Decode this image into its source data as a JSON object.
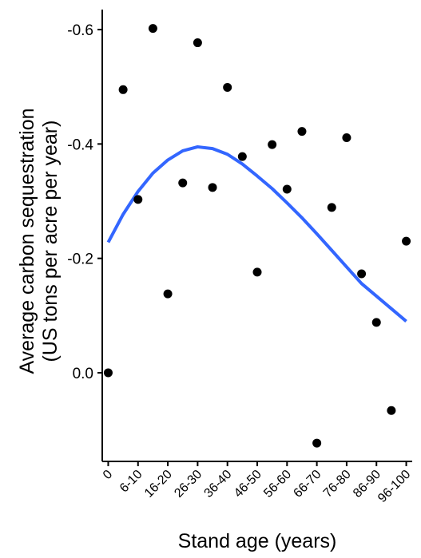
{
  "chart_data": {
    "type": "scatter",
    "title": "",
    "xlabel": "Stand age (years)",
    "ylabel": "Average carbon sequestration",
    "ylabel_line2": "(US tons per acre per year)",
    "x_tick_labels": [
      "0",
      "6-10",
      "16-20",
      "26-30",
      "36-40",
      "46-50",
      "56-60",
      "66-70",
      "76-80",
      "86-90",
      "96-100"
    ],
    "x_tick_values": [
      0,
      10,
      20,
      30,
      40,
      50,
      60,
      70,
      80,
      90,
      100
    ],
    "y_tick_labels": [
      "-0.6",
      "-0.4",
      "-0.2",
      "0.0"
    ],
    "y_tick_values": [
      -0.6,
      -0.4,
      -0.2,
      0.0
    ],
    "y_axis_reversed": true,
    "xlim": [
      -2,
      102
    ],
    "ylim": [
      -0.635,
      0.155
    ],
    "grid": false,
    "points": [
      {
        "x": 0,
        "y": 0.0
      },
      {
        "x": 5,
        "y": -0.495
      },
      {
        "x": 10,
        "y": -0.303
      },
      {
        "x": 15,
        "y": -0.602
      },
      {
        "x": 20,
        "y": -0.138
      },
      {
        "x": 25,
        "y": -0.332
      },
      {
        "x": 30,
        "y": -0.577
      },
      {
        "x": 35,
        "y": -0.324
      },
      {
        "x": 40,
        "y": -0.499
      },
      {
        "x": 45,
        "y": -0.378
      },
      {
        "x": 50,
        "y": -0.176
      },
      {
        "x": 55,
        "y": -0.399
      },
      {
        "x": 60,
        "y": -0.321
      },
      {
        "x": 65,
        "y": -0.422
      },
      {
        "x": 70,
        "y": 0.123
      },
      {
        "x": 75,
        "y": -0.289
      },
      {
        "x": 80,
        "y": -0.411
      },
      {
        "x": 85,
        "y": -0.173
      },
      {
        "x": 90,
        "y": -0.088
      },
      {
        "x": 95,
        "y": 0.066
      },
      {
        "x": 100,
        "y": -0.23
      }
    ],
    "fit_line": {
      "x": [
        0,
        5,
        10,
        15,
        20,
        25,
        30,
        35,
        40,
        45,
        50,
        55,
        60,
        65,
        70,
        75,
        80,
        85,
        90,
        95,
        100
      ],
      "y": [
        -0.228,
        -0.277,
        -0.317,
        -0.349,
        -0.372,
        -0.388,
        -0.395,
        -0.392,
        -0.382,
        -0.365,
        -0.344,
        -0.322,
        -0.297,
        -0.271,
        -0.243,
        -0.214,
        -0.185,
        -0.156,
        -0.134,
        -0.112,
        -0.09
      ]
    },
    "colors": {
      "points": "#000000",
      "fit_line": "#3366ff",
      "axis": "#000000"
    }
  }
}
